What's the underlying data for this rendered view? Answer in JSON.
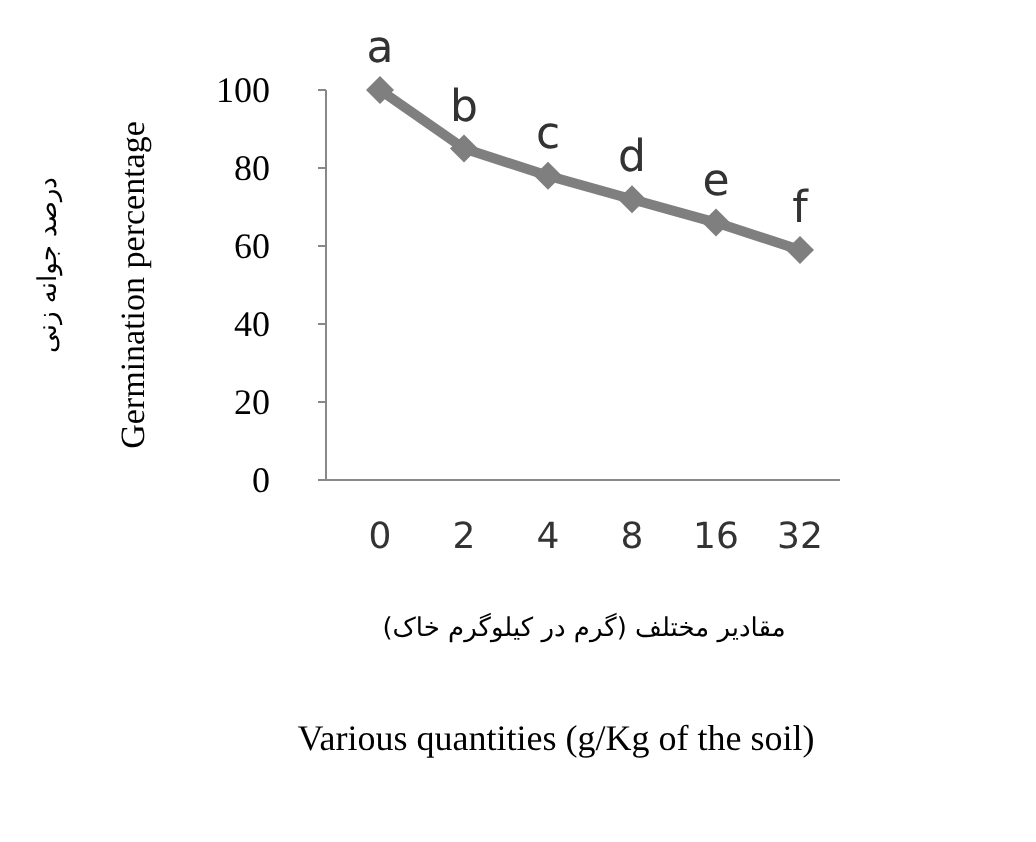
{
  "chart_data": {
    "type": "line",
    "xlabel": "مقادیر مختلف (گرم در کیلوگرم خاک)",
    "ylabel": "Germination percentage",
    "categories": [
      "0",
      "2",
      "4",
      "8",
      "16",
      "32"
    ],
    "series": [
      {
        "color": "#7f7f7f",
        "values": [
          100,
          85,
          78,
          72,
          66,
          59
        ],
        "value_labels": [
          "a",
          "b",
          "c",
          "d",
          "e",
          "f"
        ]
      }
    ],
    "ylim": [
      0,
      100
    ],
    "yticks": [
      0,
      20,
      40,
      60,
      80,
      100
    ],
    "grid": false,
    "marker": "diamond",
    "line_style": "solid",
    "annotations": [
      "درصد جوانه زنی",
      "Various quantities (g/Kg of the soil)"
    ]
  }
}
